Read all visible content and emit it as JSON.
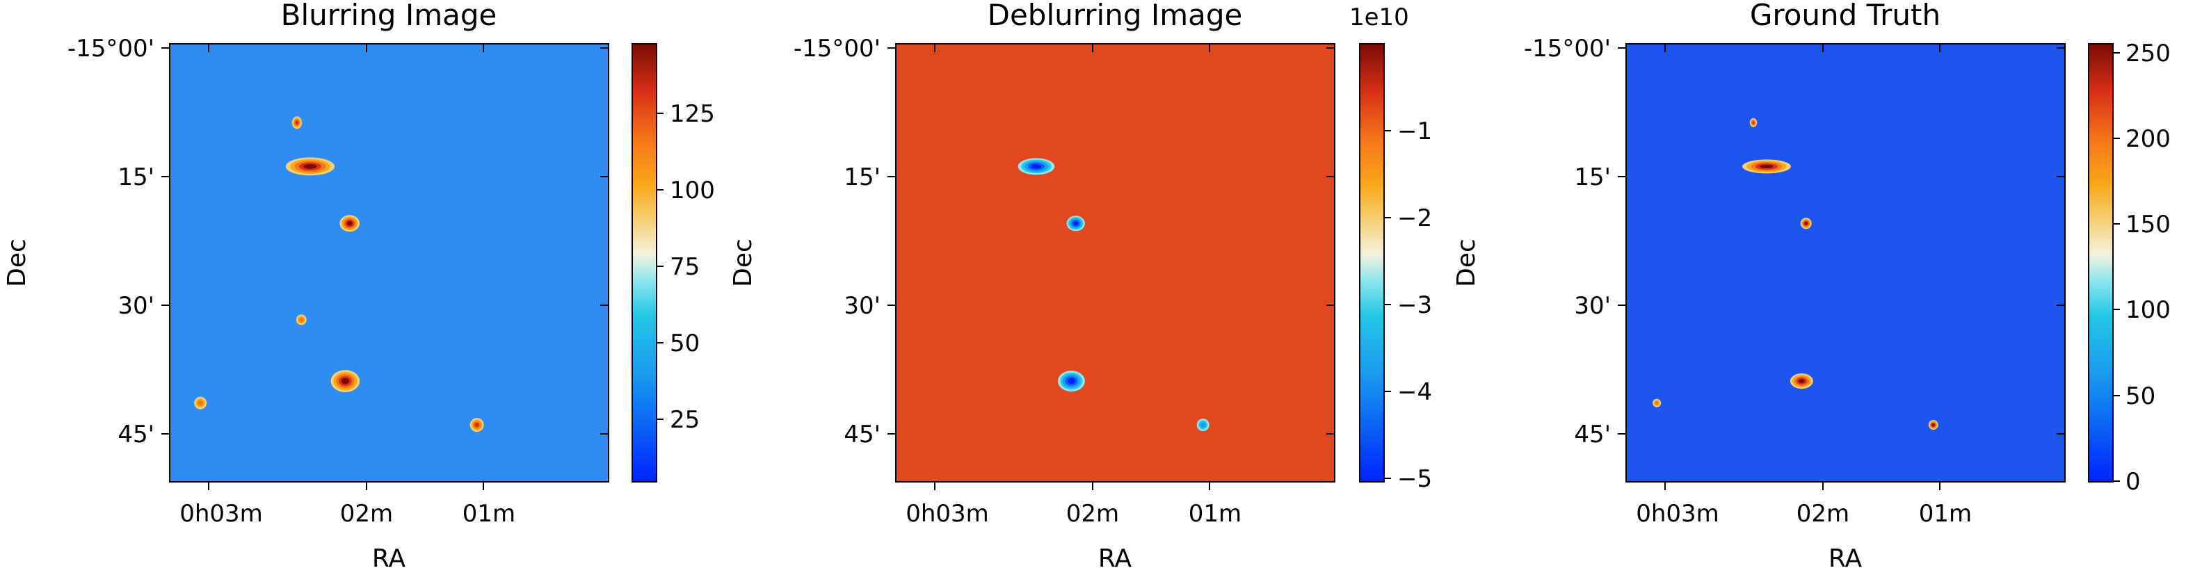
{
  "chart_data": [
    {
      "type": "heatmap",
      "title": "Blurring Image",
      "xlabel": "RA",
      "ylabel": "Dec",
      "x_ticks": [
        "0h03m",
        "02m",
        "01m"
      ],
      "y_ticks": [
        "-15°00'",
        "15'",
        "30'",
        "45'"
      ],
      "colorbar": {
        "ticks": [
          "25",
          "50",
          "75",
          "100",
          "125"
        ],
        "range": [
          4,
          145
        ],
        "label": "Dec",
        "offset": ""
      },
      "background": "#2f8cf0",
      "sources": [
        {
          "ra": 0.4,
          "dec": 0.77,
          "size": 3.2,
          "elong": 1.3,
          "strength": 1.0
        },
        {
          "ra": 0.32,
          "dec": 0.28,
          "size": 2.6,
          "elong": 2.7,
          "strength": 1.0
        },
        {
          "ra": 0.41,
          "dec": 0.41,
          "size": 2.4,
          "elong": 1.2,
          "strength": 1.0
        },
        {
          "ra": 0.7,
          "dec": 0.87,
          "size": 2.0,
          "elong": 1.0,
          "strength": 0.86
        },
        {
          "ra": 0.29,
          "dec": 0.18,
          "size": 1.8,
          "elong": 0.8,
          "strength": 0.82
        },
        {
          "ra": 0.07,
          "dec": 0.82,
          "size": 1.8,
          "elong": 1.0,
          "strength": 0.66
        },
        {
          "ra": 0.3,
          "dec": 0.63,
          "size": 1.5,
          "elong": 1.0,
          "strength": 0.5
        }
      ]
    },
    {
      "type": "heatmap",
      "title": "Deblurring Image",
      "xlabel": "RA",
      "ylabel": "Dec",
      "x_ticks": [
        "0h03m",
        "02m",
        "01m"
      ],
      "y_ticks": [
        "-15°00'",
        "15'",
        "30'",
        "45'"
      ],
      "colorbar": {
        "ticks": [
          "−1",
          "−2",
          "−3",
          "−4",
          "−5"
        ],
        "range": [
          -5.05,
          -0.15
        ],
        "label": "Dec",
        "offset": "1e10"
      },
      "background": "#e0481f",
      "sources": [
        {
          "ra": 0.4,
          "dec": 0.77,
          "size": 3.0,
          "elong": 1.3,
          "strength": 1.0
        },
        {
          "ra": 0.32,
          "dec": 0.28,
          "size": 2.4,
          "elong": 2.2,
          "strength": 0.95
        },
        {
          "ra": 0.41,
          "dec": 0.41,
          "size": 2.2,
          "elong": 1.2,
          "strength": 0.9
        },
        {
          "ra": 0.7,
          "dec": 0.87,
          "size": 1.8,
          "elong": 1.0,
          "strength": 0.5
        }
      ]
    },
    {
      "type": "heatmap",
      "title": "Ground Truth",
      "xlabel": "RA",
      "ylabel": "Dec",
      "x_ticks": [
        "0h03m",
        "02m",
        "01m"
      ],
      "y_ticks": [
        "-15°00'",
        "15'",
        "30'",
        "45'"
      ],
      "colorbar": {
        "ticks": [
          "0",
          "50",
          "100",
          "150",
          "200",
          "250"
        ],
        "range": [
          0,
          255
        ],
        "label": "",
        "offset": ""
      },
      "background": "#1e55ee",
      "sources": [
        {
          "ra": 0.4,
          "dec": 0.77,
          "size": 2.2,
          "elong": 1.5,
          "strength": 1.0
        },
        {
          "ra": 0.32,
          "dec": 0.28,
          "size": 2.0,
          "elong": 3.5,
          "strength": 1.0
        },
        {
          "ra": 0.41,
          "dec": 0.41,
          "size": 1.6,
          "elong": 1.0,
          "strength": 1.0
        },
        {
          "ra": 0.7,
          "dec": 0.87,
          "size": 1.4,
          "elong": 1.0,
          "strength": 0.95
        },
        {
          "ra": 0.29,
          "dec": 0.18,
          "size": 1.3,
          "elong": 0.8,
          "strength": 0.8
        },
        {
          "ra": 0.07,
          "dec": 0.82,
          "size": 1.2,
          "elong": 1.0,
          "strength": 0.6
        }
      ]
    }
  ]
}
